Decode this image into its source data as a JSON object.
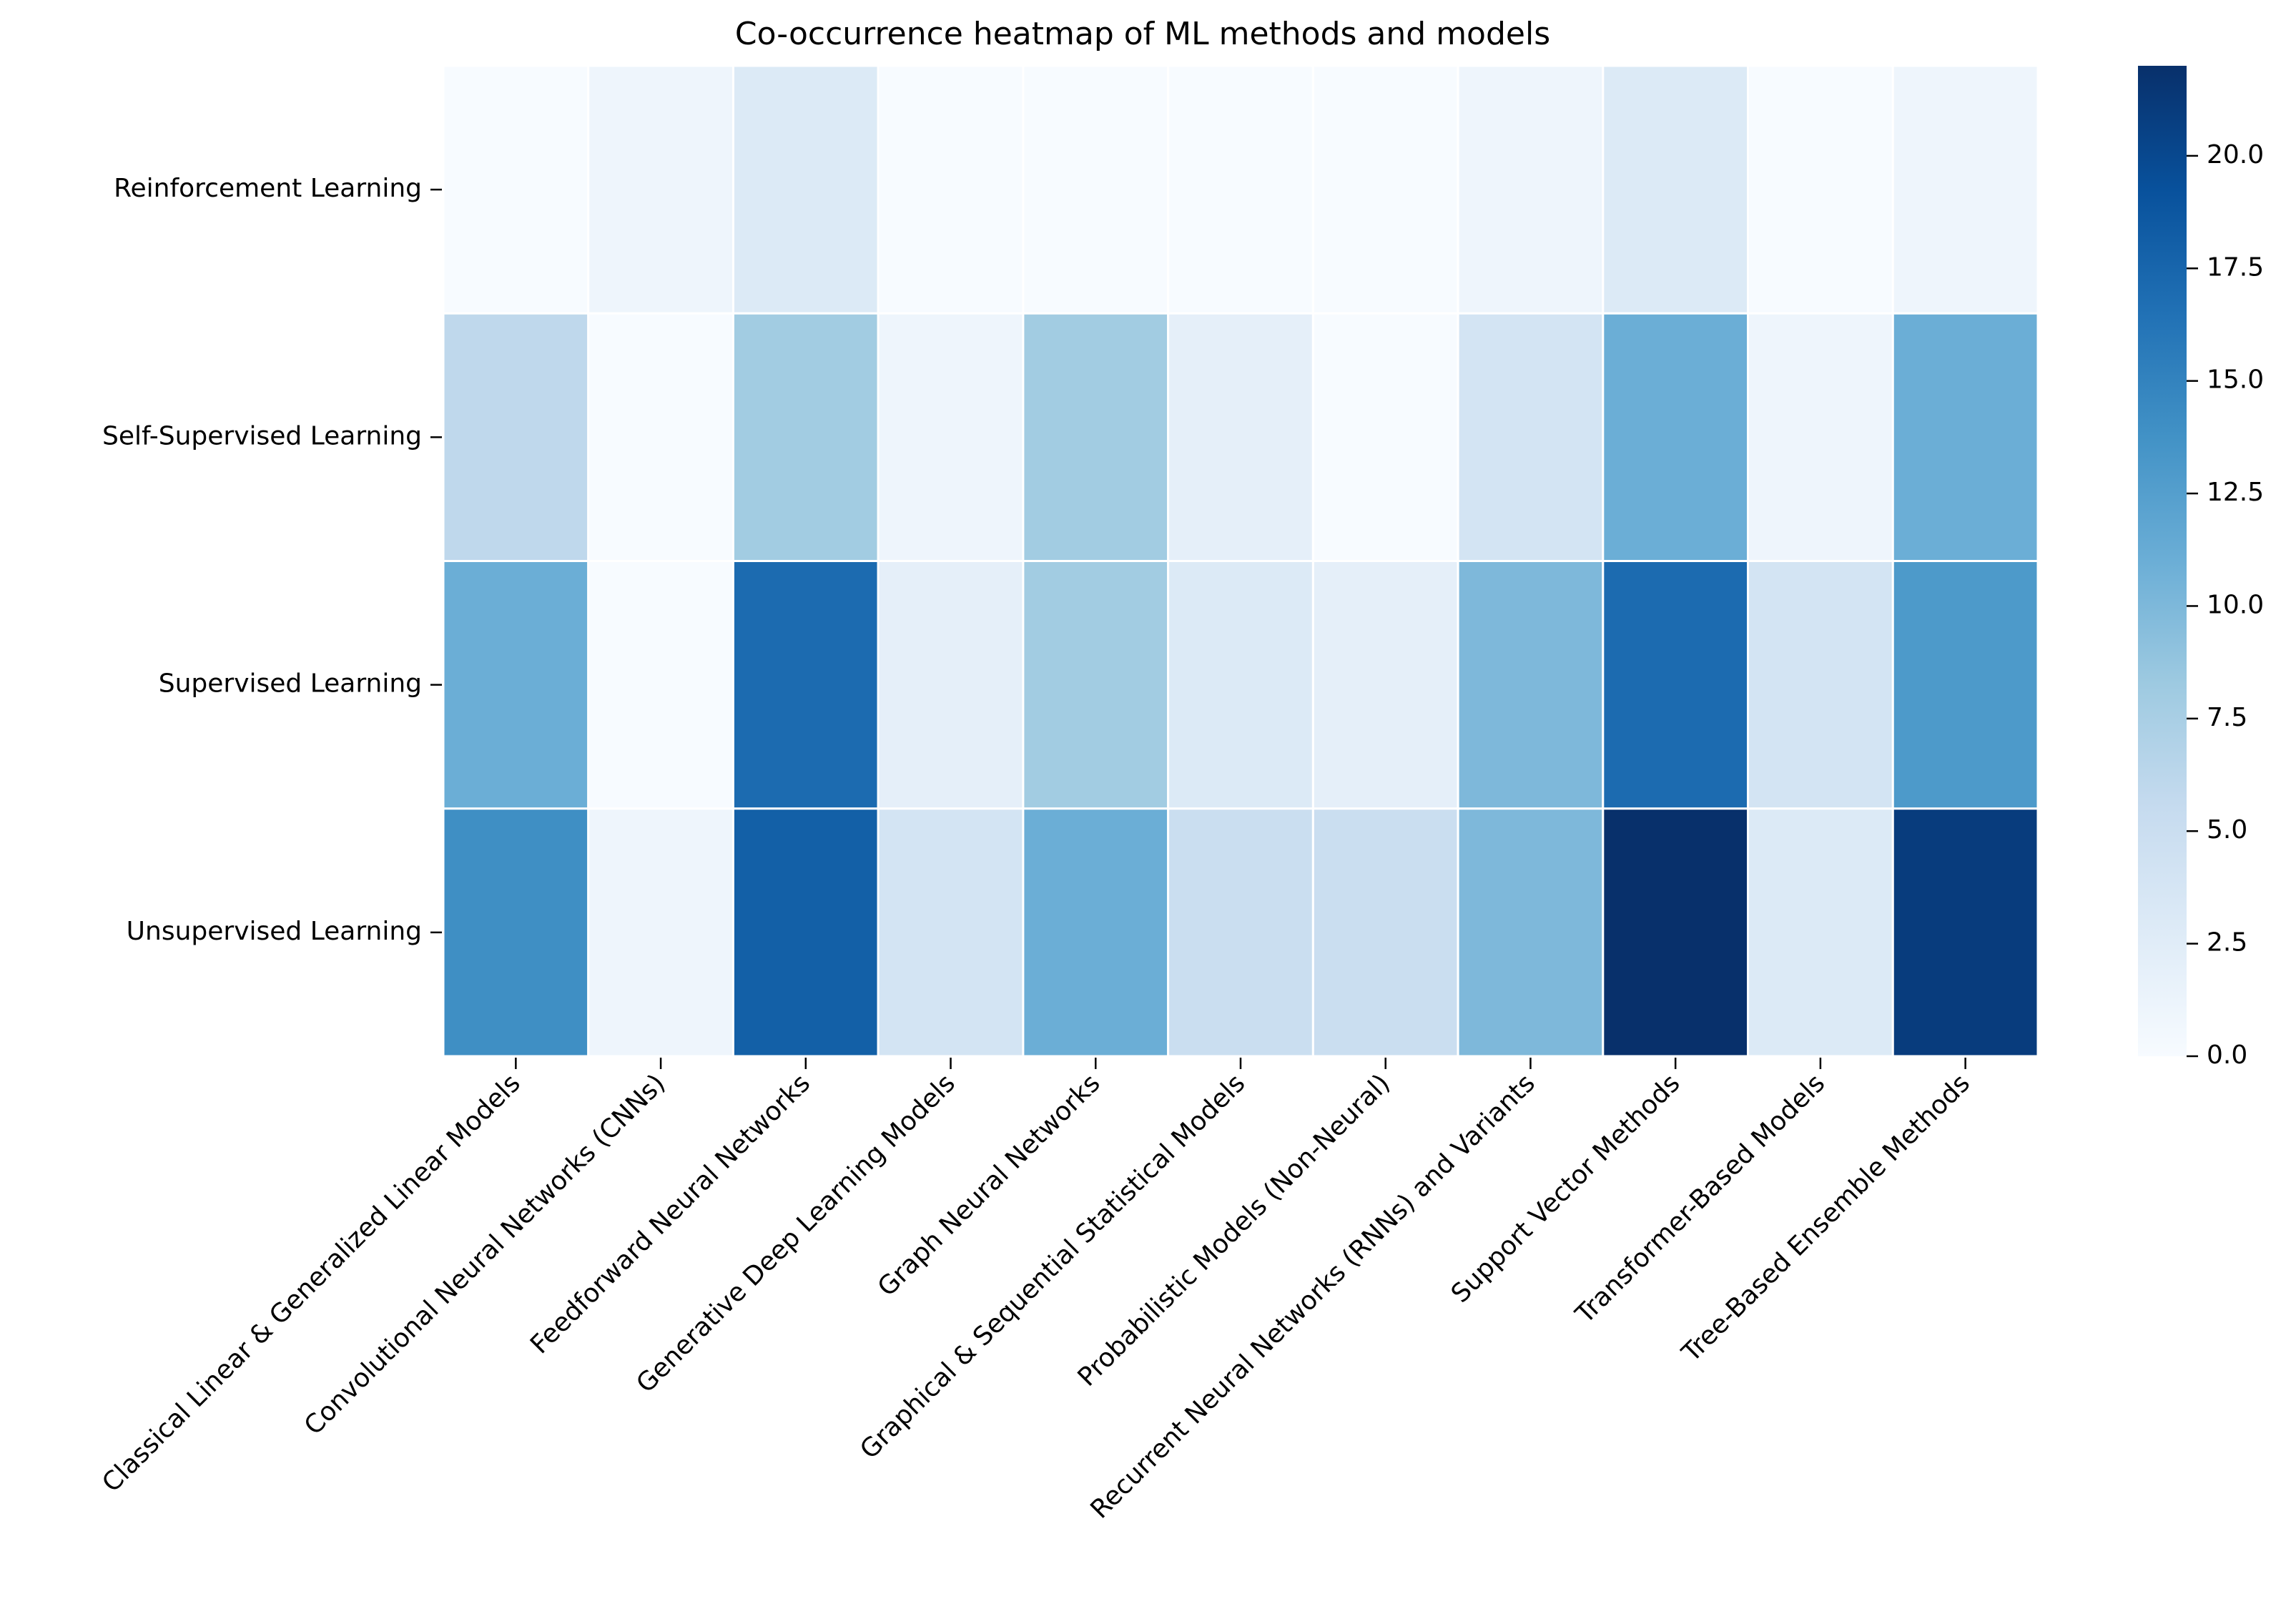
{
  "chart_data": {
    "type": "heatmap",
    "title": "Co-occurrence heatmap of ML methods and models",
    "xlabel": "",
    "ylabel": "",
    "rows": [
      "Reinforcement Learning",
      "Self-Supervised Learning",
      "Supervised Learning",
      "Unsupervised Learning"
    ],
    "columns": [
      "Classical Linear & Generalized Linear Models",
      "Convolutional Neural Networks (CNNs)",
      "Feedforward Neural Networks",
      "Generative Deep Learning Models",
      "Graph Neural Networks",
      "Graphical & Sequential Statistical Models",
      "Probabilistic Models (Non-Neural)",
      "Recurrent Neural Networks (RNNs) and Variants",
      "Support Vector Methods",
      "Transformer-Based Models",
      "Tree-Based Ensemble Methods"
    ],
    "values": [
      [
        0,
        1,
        3,
        0,
        0,
        0,
        0,
        1,
        3,
        0,
        1
      ],
      [
        6,
        0,
        8,
        1,
        8,
        2,
        0,
        4,
        11,
        1,
        11
      ],
      [
        11,
        0,
        17,
        2,
        8,
        3,
        2,
        10,
        17,
        4,
        13
      ],
      [
        14,
        1,
        18,
        4,
        11,
        5,
        5,
        10,
        22,
        3,
        21
      ]
    ],
    "colorbar": {
      "min": 0,
      "max": 22,
      "ticks": [
        "0.0",
        "2.5",
        "5.0",
        "7.5",
        "10.0",
        "12.5",
        "15.0",
        "17.5",
        "20.0"
      ],
      "colormap": "Blues",
      "colors": [
        "#f7fbff",
        "#deebf7",
        "#c6dbef",
        "#9ecae1",
        "#6baed6",
        "#4292c6",
        "#2171b5",
        "#08519c",
        "#08306b"
      ]
    },
    "grid": false,
    "legend": "colorbar-right"
  }
}
